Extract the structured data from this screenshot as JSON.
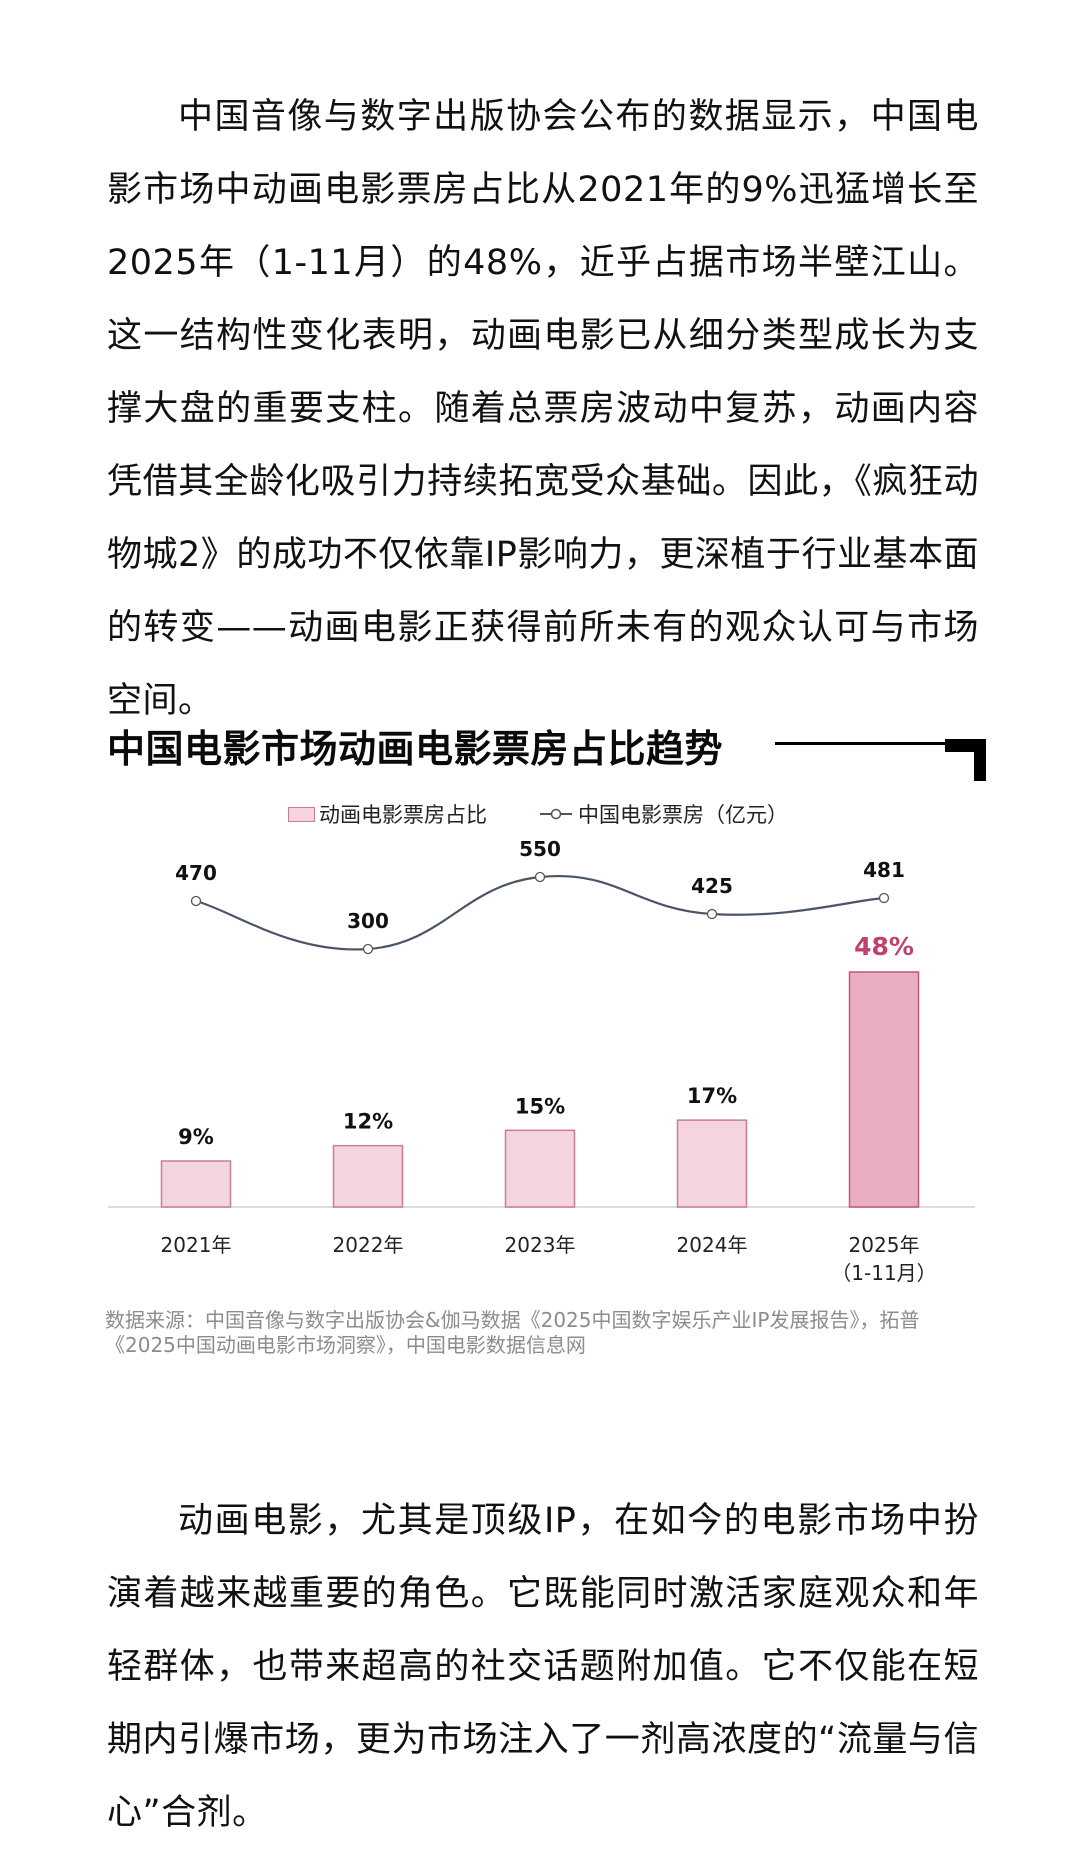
{
  "article": {
    "paragraph1": "中国音像与数字出版协会公布的数据显示，中国电影市场中动画电影票房占比从2021年的9%迅猛增长至2025年（1-11月）的48%，近乎占据市场半壁江山。这一结构性变化表明，动画电影已从细分类型成长为支撑大盘的重要支柱。随着总票房波动中复苏，动画内容凭借其全龄化吸引力持续拓宽受众基础。因此，《疯狂动物城2》的成功不仅依靠IP影响力，更深植于行业基本面的转变——动画电影正获得前所未有的观众认可与市场空间。",
    "paragraph2": "动画电影，尤其是顶级IP，在如今的电影市场中扮演着越来越重要的角色。它既能同时激活家庭观众和年轻群体，也带来超高的社交话题附加值。它不仅能在短期内引爆市场，更为市场注入了一剂高浓度的“流量与信心”合剂。"
  },
  "chart": {
    "title": "中国电影市场动画电影票房占比趋势",
    "legend": {
      "bar_label": "动画电影票房占比",
      "line_label": "中国电影票房（亿元）"
    },
    "source_line1": "数据来源：中国音像与数字出版协会&伽马数据《2025中国数字娱乐产业IP发展报告》，拓普",
    "source_line2": "《2025中国动画电影市场洞察》，中国电影数据信息网",
    "colors": {
      "bar_fill": "#f4d4de",
      "bar_border": "#c97d95",
      "highlight_fill": "#e9afc1",
      "highlight_border": "#c2577a",
      "highlight_label": "#c0416f",
      "line": "#4a5566",
      "axis": "#dddddd"
    }
  },
  "chart_data": {
    "type": "bar",
    "title": "中国电影市场动画电影票房占比趋势",
    "categories": [
      "2021年",
      "2022年",
      "2023年",
      "2024年",
      "2025年\n（1-11月）"
    ],
    "series": [
      {
        "name": "动画电影票房占比",
        "type": "bar",
        "values": [
          9,
          12,
          15,
          17,
          48
        ],
        "labels": [
          "9%",
          "12%",
          "15%",
          "17%",
          "48%"
        ],
        "unit": "%"
      },
      {
        "name": "中国电影票房（亿元）",
        "type": "line",
        "values": [
          470,
          300,
          550,
          425,
          481
        ],
        "labels": [
          "470",
          "300",
          "550",
          "425",
          "481"
        ],
        "unit": "亿元"
      }
    ],
    "xlabel": "",
    "ylabel": "",
    "grid": false,
    "legend_position": "top",
    "highlight_index": 4
  }
}
